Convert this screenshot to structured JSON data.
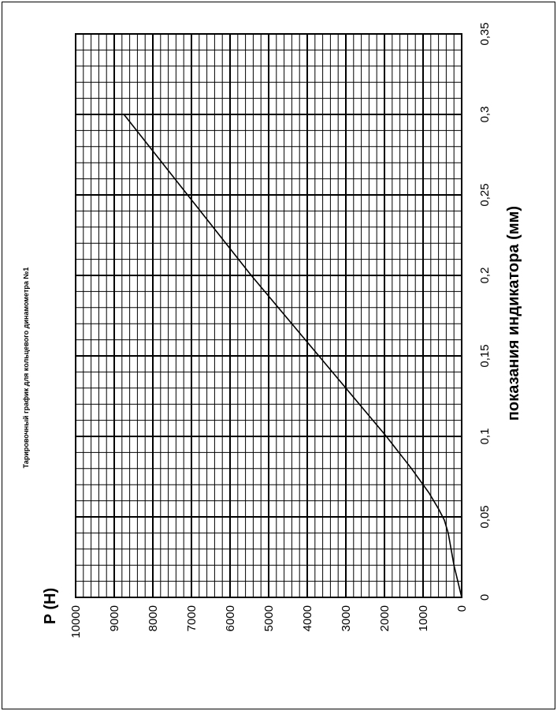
{
  "chart_data": {
    "type": "line",
    "orientation": "rotated-90",
    "title": "Тарировочный график для кольцевого динамометра №1",
    "xlabel": "показания индикатора (мм)",
    "ylabel": "P (H)",
    "xlim": [
      0,
      0.35
    ],
    "ylim": [
      0,
      10000
    ],
    "x_ticks": [
      "0",
      "0,05",
      "0,1",
      "0,15",
      "0,2",
      "0,25",
      "0,3",
      "0,35"
    ],
    "y_ticks": [
      "0",
      "1000",
      "2000",
      "3000",
      "4000",
      "5000",
      "6000",
      "7000",
      "8000",
      "9000",
      "10000"
    ],
    "grid": true,
    "series": [
      {
        "x": [
          0,
          0.02,
          0.04,
          0.048,
          0.055,
          0.065,
          0.08,
          0.1,
          0.15,
          0.2,
          0.25,
          0.3
        ],
        "y": [
          0,
          200,
          350,
          450,
          600,
          850,
          1300,
          1950,
          3700,
          5450,
          7100,
          8750
        ]
      }
    ]
  }
}
